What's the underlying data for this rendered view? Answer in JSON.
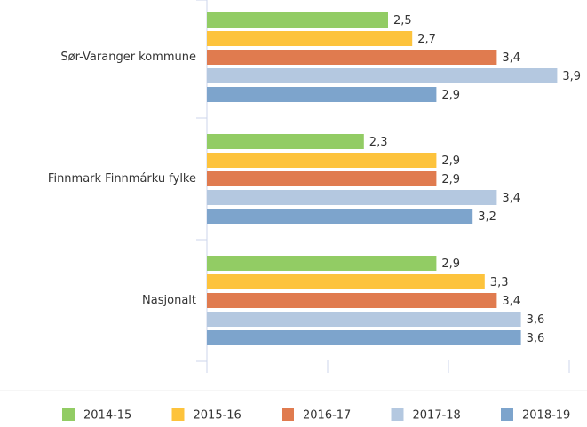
{
  "chart_data": {
    "type": "hbar",
    "categories": [
      "Sør-Varanger kommune",
      "Finnmark Finnmárku fylke",
      "Nasjonalt"
    ],
    "series": [
      {
        "name": "2014-15",
        "color": "#92cc64",
        "values": [
          2.5,
          2.3,
          2.9
        ],
        "value_labels": [
          "2,5",
          "2,3",
          "2,9"
        ]
      },
      {
        "name": "2015-16",
        "color": "#fdc33c",
        "values": [
          2.7,
          2.9,
          3.3
        ],
        "value_labels": [
          "2,7",
          "2,9",
          "3,3"
        ]
      },
      {
        "name": "2016-17",
        "color": "#e07b4f",
        "values": [
          3.4,
          2.9,
          3.4
        ],
        "value_labels": [
          "3,4",
          "2,9",
          "3,4"
        ]
      },
      {
        "name": "2017-18",
        "color": "#b4c8e0",
        "values": [
          3.9,
          3.4,
          3.6
        ],
        "value_labels": [
          "3,9",
          "3,4",
          "3,6"
        ]
      },
      {
        "name": "2018-19",
        "color": "#7da4cc",
        "values": [
          2.9,
          3.2,
          3.6
        ],
        "value_labels": [
          "2,9",
          "3,2",
          "3,6"
        ]
      }
    ],
    "xlim": [
      1,
      4
    ],
    "xticks": [
      1,
      2,
      3,
      4
    ],
    "legend": "bottom"
  }
}
